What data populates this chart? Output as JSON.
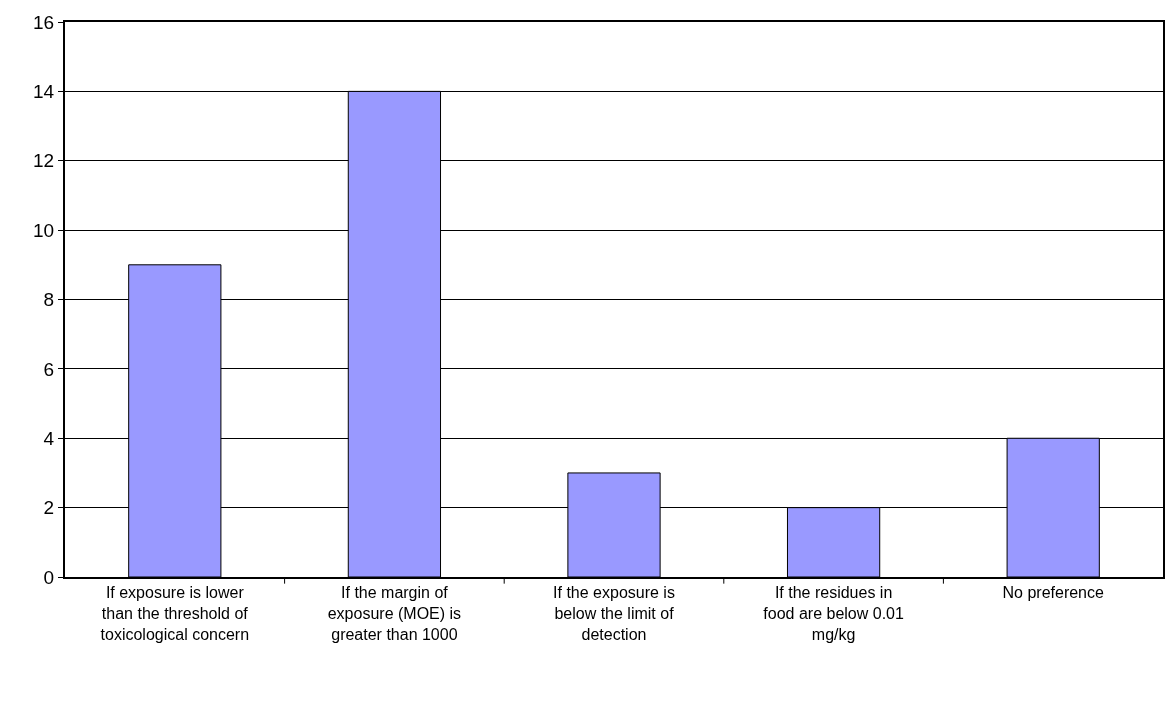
{
  "chart_data": {
    "type": "bar",
    "categories": [
      "If exposure is lower than the threshold of toxicological concern",
      "If the margin of exposure (MOE) is greater than 1000",
      "If the exposure is below the limit of detection",
      "If the residues in food are below 0.01 mg/kg",
      "No preference"
    ],
    "values": [
      9,
      14,
      3,
      2,
      4
    ],
    "color": "#9999ff",
    "ylim": [
      0,
      16
    ],
    "yticks": [
      0,
      2,
      4,
      6,
      8,
      10,
      12,
      14,
      16
    ],
    "grid": "y"
  }
}
